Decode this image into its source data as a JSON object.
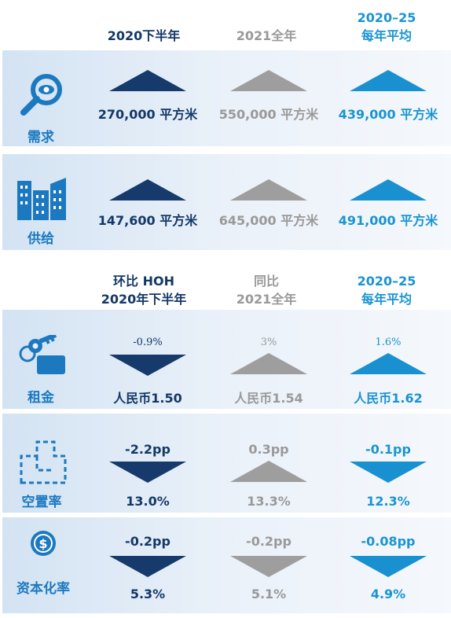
{
  "header1": {
    "col1": "2020下半年",
    "col2": "2021全年",
    "col3_line1": "2020–25",
    "col3_line2": "每年平均"
  },
  "demand": {
    "label": "需求",
    "col1": "270,000 平方米",
    "col2": "550,000 平方米",
    "col3": "439,000 平方米",
    "icon": "magnifier-eye-icon"
  },
  "supply": {
    "label": "供给",
    "col1": "147,600 平方米",
    "col2": "645,000 平方米",
    "col3": "491,000 平方米",
    "icon": "buildings-icon"
  },
  "header2": {
    "col1_line1": "环比 HOH",
    "col1_line2": "2020年下半年",
    "col2_line1": "同比",
    "col2_line2": "2021全年",
    "col3_line1": "2020–25",
    "col3_line2": "每年平均"
  },
  "rent": {
    "label": "租金",
    "col1_change": "-0.9%",
    "col1_value": "人民币1.50",
    "col2_change": "3%",
    "col2_value": "人民币1.54",
    "col3_change": "1.6%",
    "col3_value": "人民币1.62",
    "icon": "key-icon"
  },
  "vacancy": {
    "label": "空置率",
    "col1_change": "-2.2pp",
    "col1_value": "13.0%",
    "col2_change": "0.3pp",
    "col2_value": "13.3%",
    "col3_change": "-0.1pp",
    "col3_value": "12.3%",
    "icon": "floorplan-icon"
  },
  "caprate": {
    "label": "资本化率",
    "col1_change": "-0.2pp",
    "col1_value": "5.3%",
    "col2_change": "-0.2pp",
    "col2_value": "5.1%",
    "col3_change": "-0.08pp",
    "col3_value": "4.9%",
    "icon": "dollar-coin-icon"
  },
  "colors": {
    "navy": "#163a6b",
    "gray": "#9e9e9e",
    "blue": "#1991d0",
    "icon_blue": "#1c79c0"
  }
}
